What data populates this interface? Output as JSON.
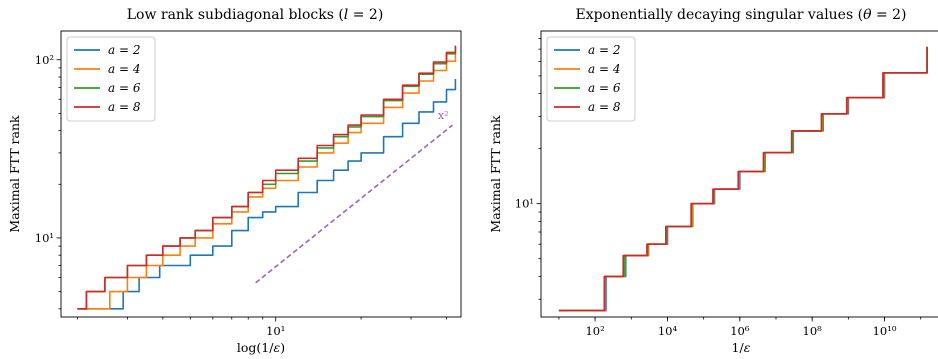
{
  "colors": {
    "a2": "#1f77b4",
    "a4": "#ff7f0e",
    "a6": "#2ca02c",
    "a8": "#d62728",
    "reference": "#9467bd"
  },
  "chart_data": [
    {
      "type": "line",
      "title": "Low rank subdiagonal blocks (l = 2)",
      "xlabel": "log(1/ε)",
      "ylabel": "Maximal FTT rank",
      "xscale": "log",
      "yscale": "log",
      "xlim": [
        1.75,
        45
      ],
      "ylim": [
        3.6,
        145
      ],
      "xticks": [
        {
          "value": 10,
          "label": "10¹"
        }
      ],
      "yticks": [
        {
          "value": 10,
          "label": "10¹"
        },
        {
          "value": 100,
          "label": "10²"
        }
      ],
      "legend": "top-left",
      "grid": false,
      "series": [
        {
          "name": "a = 2",
          "color_key": "a2",
          "x": [
            2.0,
            2.4,
            2.9,
            3.3,
            3.9,
            4.4,
            5.0,
            6.0,
            7.0,
            8.0,
            9.0,
            10.0,
            12.0,
            14.0,
            16.0,
            18.0,
            20.0,
            24.0,
            28.0,
            32.0,
            36.0,
            40.0,
            43.0
          ],
          "y": [
            4,
            4,
            5,
            6,
            7,
            7,
            8,
            9,
            11,
            13,
            14,
            15,
            18,
            21,
            24,
            27,
            30,
            37,
            44,
            51,
            58,
            68,
            78
          ]
        },
        {
          "name": "a = 4",
          "color_key": "a4",
          "x": [
            2.0,
            2.2,
            2.6,
            3.0,
            3.5,
            4.0,
            4.6,
            5.2,
            6.0,
            7.0,
            8.0,
            9.0,
            10.0,
            12.0,
            14.0,
            16.0,
            18.0,
            20.0,
            24.0,
            28.0,
            32.0,
            36.0,
            40.0,
            43.0
          ],
          "y": [
            4,
            4,
            5,
            6,
            7,
            8,
            9,
            10,
            12,
            14,
            17,
            19,
            21,
            25,
            30,
            34,
            39,
            44,
            54,
            65,
            76,
            87,
            98,
            108
          ]
        },
        {
          "name": "a = 6",
          "color_key": "a6",
          "x": [
            2.0,
            2.15,
            2.5,
            3.0,
            3.5,
            4.0,
            4.6,
            5.2,
            6.0,
            7.0,
            8.0,
            9.0,
            10.0,
            12.0,
            14.0,
            16.0,
            18.0,
            20.0,
            24.0,
            28.0,
            32.0,
            36.0,
            40.0,
            43.0
          ],
          "y": [
            4,
            5,
            6,
            7,
            8,
            9,
            10,
            11,
            13,
            15,
            18,
            20,
            23,
            27,
            32,
            37,
            42,
            48,
            59,
            71,
            83,
            95,
            108,
            118
          ]
        },
        {
          "name": "a = 8",
          "color_key": "a8",
          "x": [
            2.0,
            2.15,
            2.5,
            3.0,
            3.5,
            4.0,
            4.6,
            5.2,
            6.0,
            7.0,
            8.0,
            9.0,
            10.0,
            12.0,
            14.0,
            16.0,
            18.0,
            20.0,
            24.0,
            28.0,
            32.0,
            36.0,
            40.0,
            43.0
          ],
          "y": [
            4,
            5,
            6,
            7,
            8,
            9,
            10,
            11,
            13,
            15,
            18,
            21,
            24,
            28,
            33,
            38,
            43,
            49,
            60,
            72,
            84,
            97,
            110,
            120
          ]
        }
      ],
      "reference": {
        "label": "x²",
        "color_key": "reference",
        "x": [
          8.5,
          42
        ],
        "y": [
          5.6,
          43
        ]
      }
    },
    {
      "type": "line",
      "title": "Exponentially decaying singular values (θ = 2)",
      "xlabel": "1/ε",
      "ylabel": "Maximal FTT rank",
      "xscale": "log",
      "yscale": "log",
      "xlim": [
        3.2,
        320000000000.0
      ],
      "ylim": [
        2.4,
        88
      ],
      "xticks": [
        {
          "value": 100,
          "label": "10²"
        },
        {
          "value": 10000,
          "label": "10⁴"
        },
        {
          "value": 1000000,
          "label": "10⁶"
        },
        {
          "value": 100000000,
          "label": "10⁸"
        },
        {
          "value": 10000000000,
          "label": "10¹⁰"
        }
      ],
      "yticks": [
        {
          "value": 10,
          "label": "10¹"
        }
      ],
      "legend": "top-left",
      "grid": false,
      "series": [
        {
          "name": "a = 2",
          "color_key": "a2",
          "x": [
            10,
            40,
            200,
            700,
            3000,
            10000,
            50000,
            200000,
            1000000,
            5000000,
            30000000,
            200000000,
            1000000000,
            10000000000,
            150000000000
          ],
          "y": [
            2.6,
            2.6,
            4.0,
            5.2,
            6.0,
            7.5,
            10,
            12,
            15,
            19,
            25,
            31,
            38,
            52,
            72
          ]
        },
        {
          "name": "a = 4",
          "color_key": "a4",
          "x": [
            10,
            35,
            190,
            650,
            2900,
            9500,
            48000,
            190000,
            950000,
            4800000,
            29000000,
            190000000,
            950000000,
            9500000000,
            150000000000
          ],
          "y": [
            2.6,
            2.6,
            4.0,
            5.2,
            6.0,
            7.5,
            10,
            12,
            15,
            19,
            25,
            31,
            38,
            52,
            72
          ]
        },
        {
          "name": "a = 6",
          "color_key": "a6",
          "x": [
            10,
            33,
            185,
            630,
            2800,
            9200,
            46000,
            185000,
            920000,
            4600000,
            28000000,
            185000000,
            920000000,
            9200000000,
            150000000000
          ],
          "y": [
            2.6,
            2.6,
            4.0,
            5.2,
            6.0,
            7.5,
            10,
            12,
            15,
            19,
            25,
            31,
            38,
            52,
            72
          ]
        },
        {
          "name": "a = 8",
          "color_key": "a8",
          "x": [
            10,
            30,
            180,
            600,
            2700,
            9000,
            45000,
            180000,
            900000,
            4500000,
            27000000,
            180000000,
            900000000,
            9000000000,
            150000000000
          ],
          "y": [
            2.6,
            2.6,
            4.0,
            5.2,
            6.0,
            7.5,
            10,
            12,
            15,
            19,
            25,
            31,
            38,
            52,
            72
          ]
        }
      ]
    }
  ]
}
